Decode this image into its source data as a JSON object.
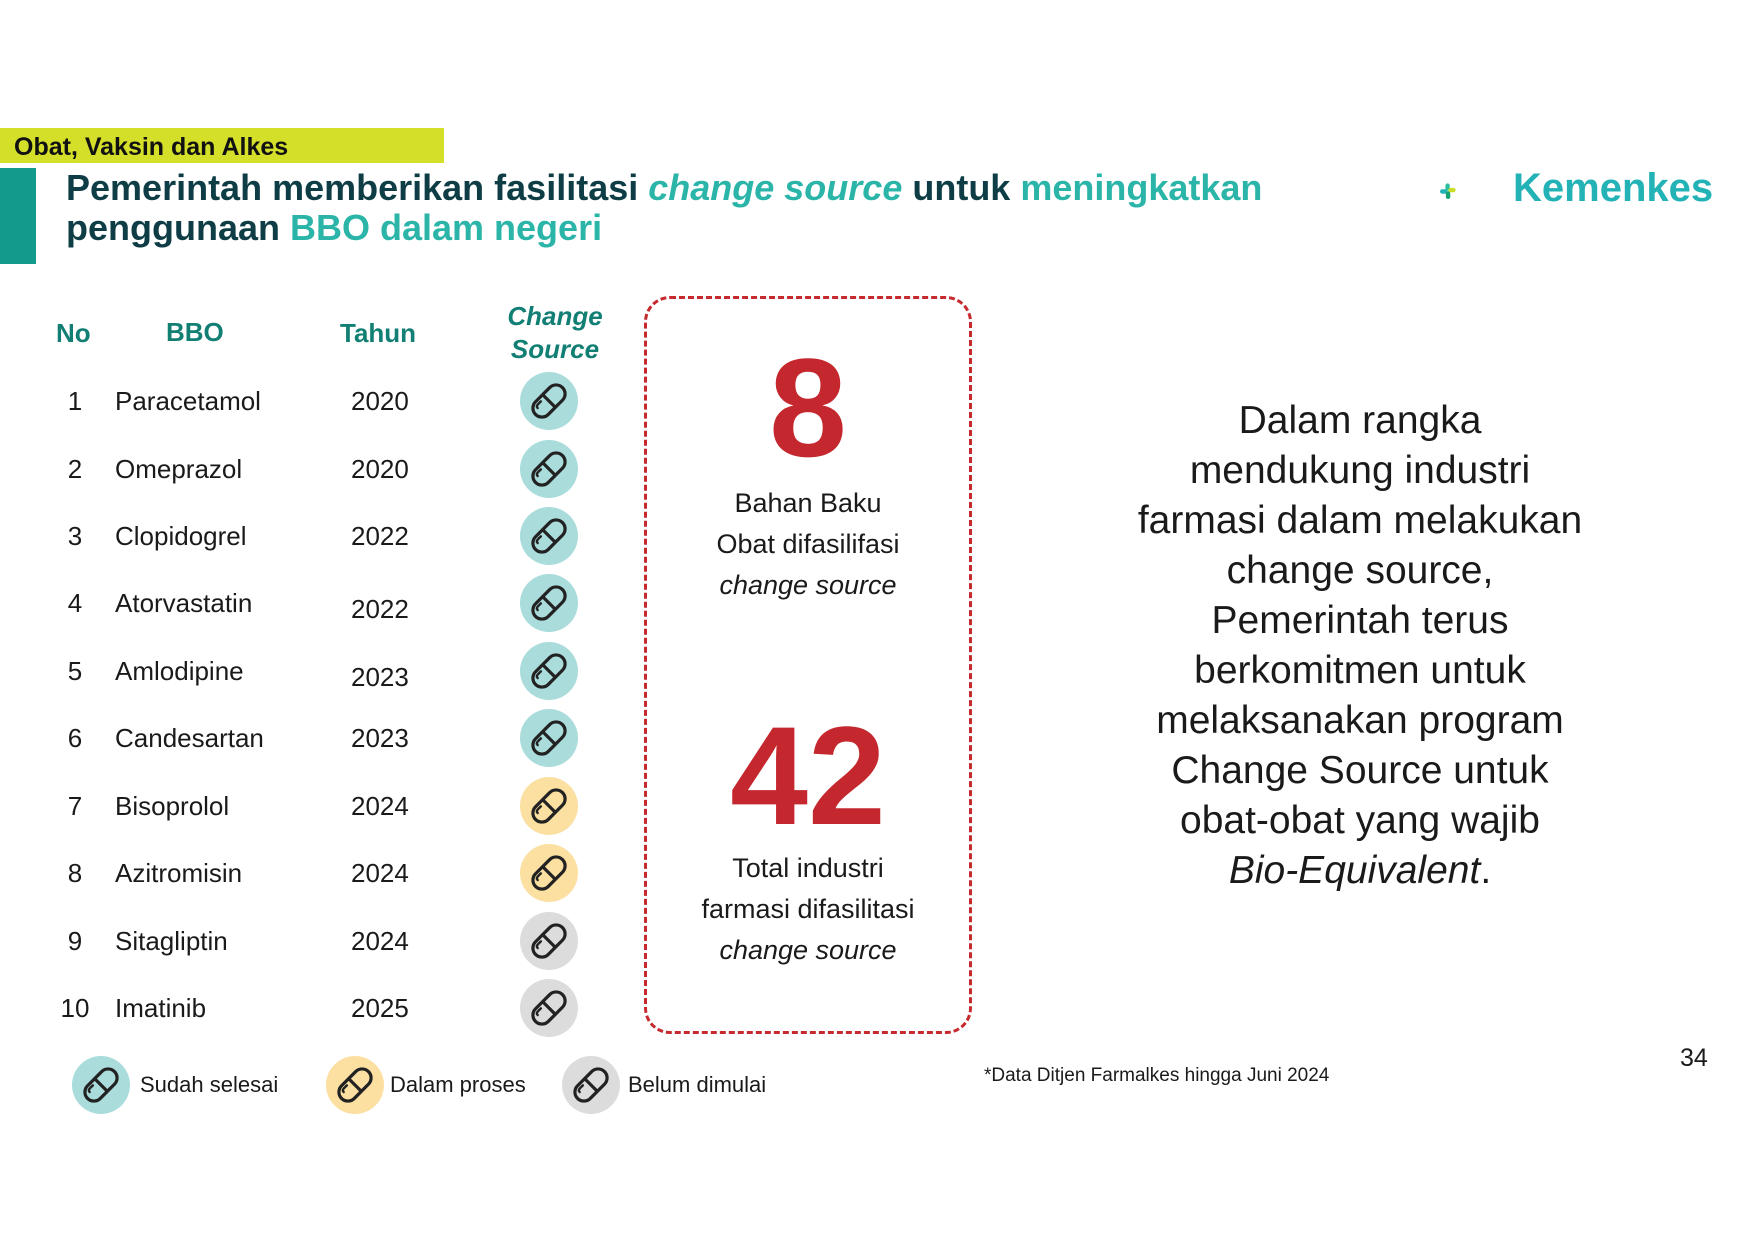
{
  "header": {
    "section_tag": "Obat, Vaksin dan Alkes",
    "title_part1": "Pemerintah memberikan fasilitasi ",
    "title_part2": "change source",
    "title_part3": " untuk ",
    "title_part4": "meningkatkan",
    "title_part5": "penggunaan ",
    "title_part6": "BBO dalam negeri"
  },
  "logo": {
    "text": "Kemenkes",
    "icon": "kemenkes-cross-icon"
  },
  "table": {
    "headers": {
      "no": "No",
      "bbo": "BBO",
      "year": "Tahun",
      "cs_line1": "Change",
      "cs_line2": "Source"
    },
    "rows": [
      {
        "no": "1",
        "bbo": "Paracetamol",
        "year": "2020",
        "status": "done"
      },
      {
        "no": "2",
        "bbo": "Omeprazol",
        "year": "2020",
        "status": "done"
      },
      {
        "no": "3",
        "bbo": "Clopidogrel",
        "year": "2022",
        "status": "done"
      },
      {
        "no": "4",
        "bbo": "Atorvastatin",
        "year": "2022",
        "status": "done"
      },
      {
        "no": "5",
        "bbo": "Amlodipine",
        "year": "2023",
        "status": "done"
      },
      {
        "no": "6",
        "bbo": "Candesartan",
        "year": "2023",
        "status": "done"
      },
      {
        "no": "7",
        "bbo": "Bisoprolol",
        "year": "2024",
        "status": "in_progress"
      },
      {
        "no": "8",
        "bbo": "Azitromisin",
        "year": "2024",
        "status": "in_progress"
      },
      {
        "no": "9",
        "bbo": "Sitagliptin",
        "year": "2024",
        "status": "not_started"
      },
      {
        "no": "10",
        "bbo": "Imatinib",
        "year": "2025",
        "status": "not_started"
      }
    ]
  },
  "status_colors": {
    "done": "#a9dcdb",
    "in_progress": "#fbe0a1",
    "not_started": "#dcdcdc"
  },
  "legend": {
    "done": "Sudah selesai",
    "in_progress": "Dalam proses",
    "not_started": "Belum dimulai"
  },
  "stats": {
    "stat1_value": "8",
    "stat1_line1": "Bahan Baku",
    "stat1_line2": "Obat difasilifasi",
    "stat1_line3": "change source",
    "stat2_value": "42",
    "stat2_line1": "Total industri",
    "stat2_line2": "farmasi difasilitasi",
    "stat2_line3": "change source"
  },
  "paragraph": {
    "lines": [
      "Dalam rangka",
      "mendukung industri",
      "farmasi dalam melakukan",
      "change source,",
      "Pemerintah terus",
      "berkomitmen untuk",
      "melaksanakan program",
      "Change Source untuk",
      "obat-obat yang wajib"
    ],
    "last_italic": "Bio-Equivalent",
    "last_suffix": "."
  },
  "footnote": "*Data Ditjen Farmalkes hingga Juni 2024",
  "page_number": "34"
}
